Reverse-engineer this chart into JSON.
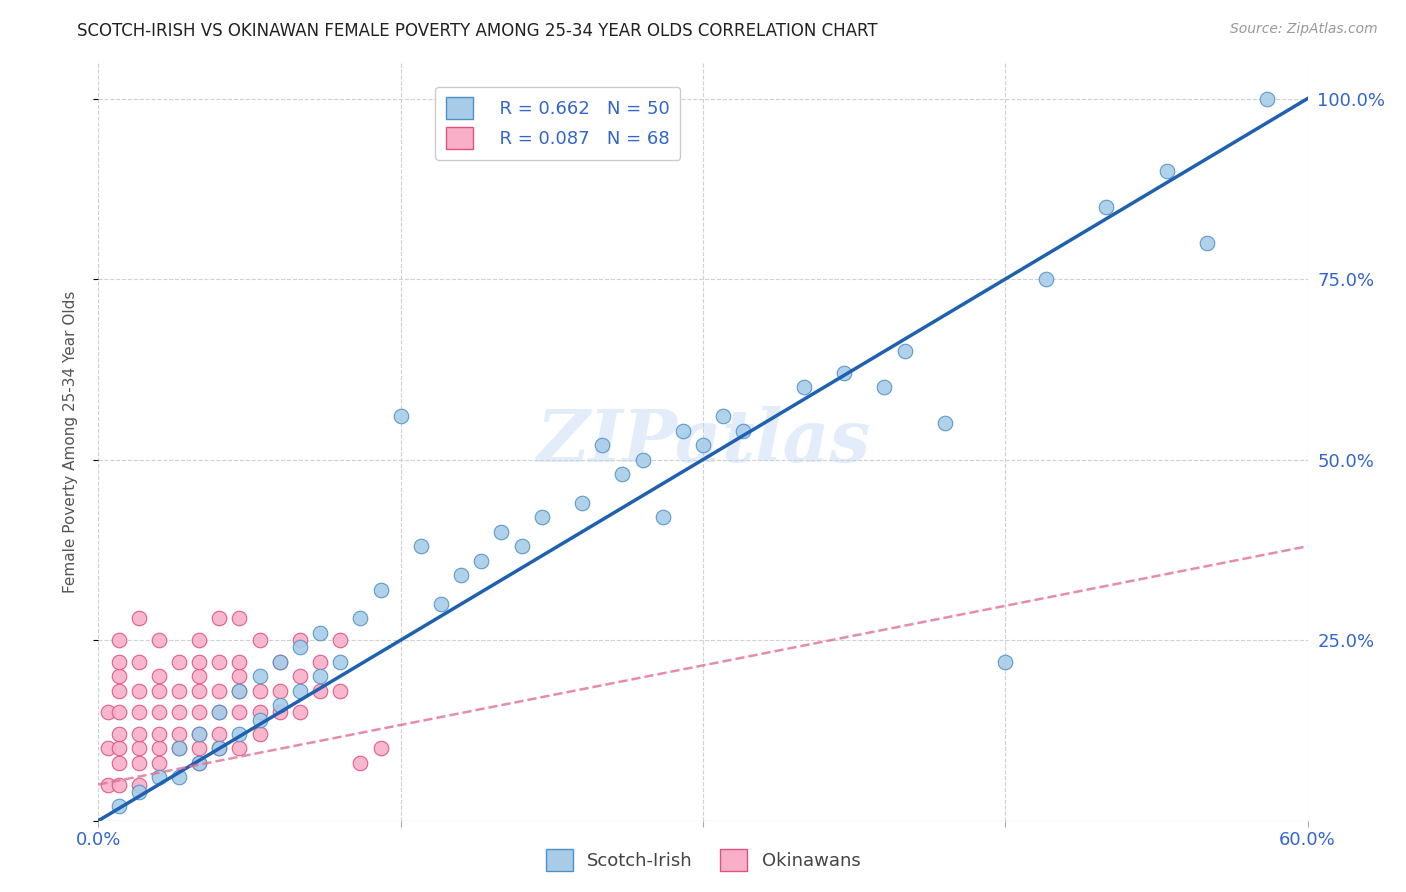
{
  "title": "SCOTCH-IRISH VS OKINAWAN FEMALE POVERTY AMONG 25-34 YEAR OLDS CORRELATION CHART",
  "source": "Source: ZipAtlas.com",
  "ylabel_left": "Female Poverty Among 25-34 Year Olds",
  "R_blue": 0.662,
  "N_blue": 50,
  "R_pink": 0.087,
  "N_pink": 68,
  "legend_label_blue": "Scotch-Irish",
  "legend_label_pink": "Okinawans",
  "blue_color": "#a8cce8",
  "blue_edge_color": "#5090c8",
  "blue_line_color": "#2060b0",
  "pink_color": "#f8b0c8",
  "pink_edge_color": "#e05080",
  "pink_line_color": "#e07090",
  "watermark": "ZIPatlas",
  "xlim": [
    0.0,
    0.6
  ],
  "ylim": [
    0.0,
    1.05
  ],
  "blue_line_x0": 0.0,
  "blue_line_y0": 0.0,
  "blue_line_x1": 0.6,
  "blue_line_y1": 1.0,
  "pink_line_x0": 0.0,
  "pink_line_y0": 0.05,
  "pink_line_x1": 0.6,
  "pink_line_y1": 0.38,
  "scotch_irish_x": [
    0.01,
    0.02,
    0.03,
    0.04,
    0.04,
    0.05,
    0.05,
    0.06,
    0.06,
    0.07,
    0.07,
    0.08,
    0.08,
    0.09,
    0.09,
    0.1,
    0.1,
    0.11,
    0.11,
    0.12,
    0.13,
    0.14,
    0.15,
    0.16,
    0.17,
    0.18,
    0.19,
    0.2,
    0.21,
    0.22,
    0.24,
    0.25,
    0.26,
    0.27,
    0.28,
    0.29,
    0.3,
    0.31,
    0.32,
    0.35,
    0.37,
    0.39,
    0.4,
    0.42,
    0.45,
    0.47,
    0.5,
    0.53,
    0.55,
    0.58
  ],
  "scotch_irish_y": [
    0.02,
    0.04,
    0.06,
    0.06,
    0.1,
    0.08,
    0.12,
    0.1,
    0.15,
    0.12,
    0.18,
    0.14,
    0.2,
    0.16,
    0.22,
    0.18,
    0.24,
    0.2,
    0.26,
    0.22,
    0.28,
    0.32,
    0.56,
    0.38,
    0.3,
    0.34,
    0.36,
    0.4,
    0.38,
    0.42,
    0.44,
    0.52,
    0.48,
    0.5,
    0.42,
    0.54,
    0.52,
    0.56,
    0.54,
    0.6,
    0.62,
    0.6,
    0.65,
    0.55,
    0.22,
    0.75,
    0.85,
    0.9,
    0.8,
    1.0
  ],
  "okinawan_x": [
    0.005,
    0.005,
    0.005,
    0.01,
    0.01,
    0.01,
    0.01,
    0.01,
    0.01,
    0.01,
    0.01,
    0.01,
    0.02,
    0.02,
    0.02,
    0.02,
    0.02,
    0.02,
    0.02,
    0.02,
    0.03,
    0.03,
    0.03,
    0.03,
    0.03,
    0.03,
    0.03,
    0.04,
    0.04,
    0.04,
    0.04,
    0.04,
    0.05,
    0.05,
    0.05,
    0.05,
    0.05,
    0.05,
    0.05,
    0.05,
    0.06,
    0.06,
    0.06,
    0.06,
    0.06,
    0.06,
    0.07,
    0.07,
    0.07,
    0.07,
    0.07,
    0.07,
    0.08,
    0.08,
    0.08,
    0.08,
    0.09,
    0.09,
    0.09,
    0.1,
    0.1,
    0.1,
    0.11,
    0.11,
    0.12,
    0.12,
    0.13,
    0.14
  ],
  "okinawan_y": [
    0.05,
    0.1,
    0.15,
    0.05,
    0.08,
    0.1,
    0.12,
    0.15,
    0.18,
    0.2,
    0.22,
    0.25,
    0.05,
    0.08,
    0.1,
    0.12,
    0.15,
    0.18,
    0.22,
    0.28,
    0.08,
    0.1,
    0.12,
    0.15,
    0.18,
    0.2,
    0.25,
    0.1,
    0.12,
    0.15,
    0.18,
    0.22,
    0.08,
    0.1,
    0.12,
    0.15,
    0.18,
    0.2,
    0.22,
    0.25,
    0.1,
    0.12,
    0.15,
    0.18,
    0.22,
    0.28,
    0.1,
    0.15,
    0.18,
    0.2,
    0.22,
    0.28,
    0.12,
    0.15,
    0.18,
    0.25,
    0.15,
    0.18,
    0.22,
    0.15,
    0.2,
    0.25,
    0.18,
    0.22,
    0.18,
    0.25,
    0.08,
    0.1
  ]
}
